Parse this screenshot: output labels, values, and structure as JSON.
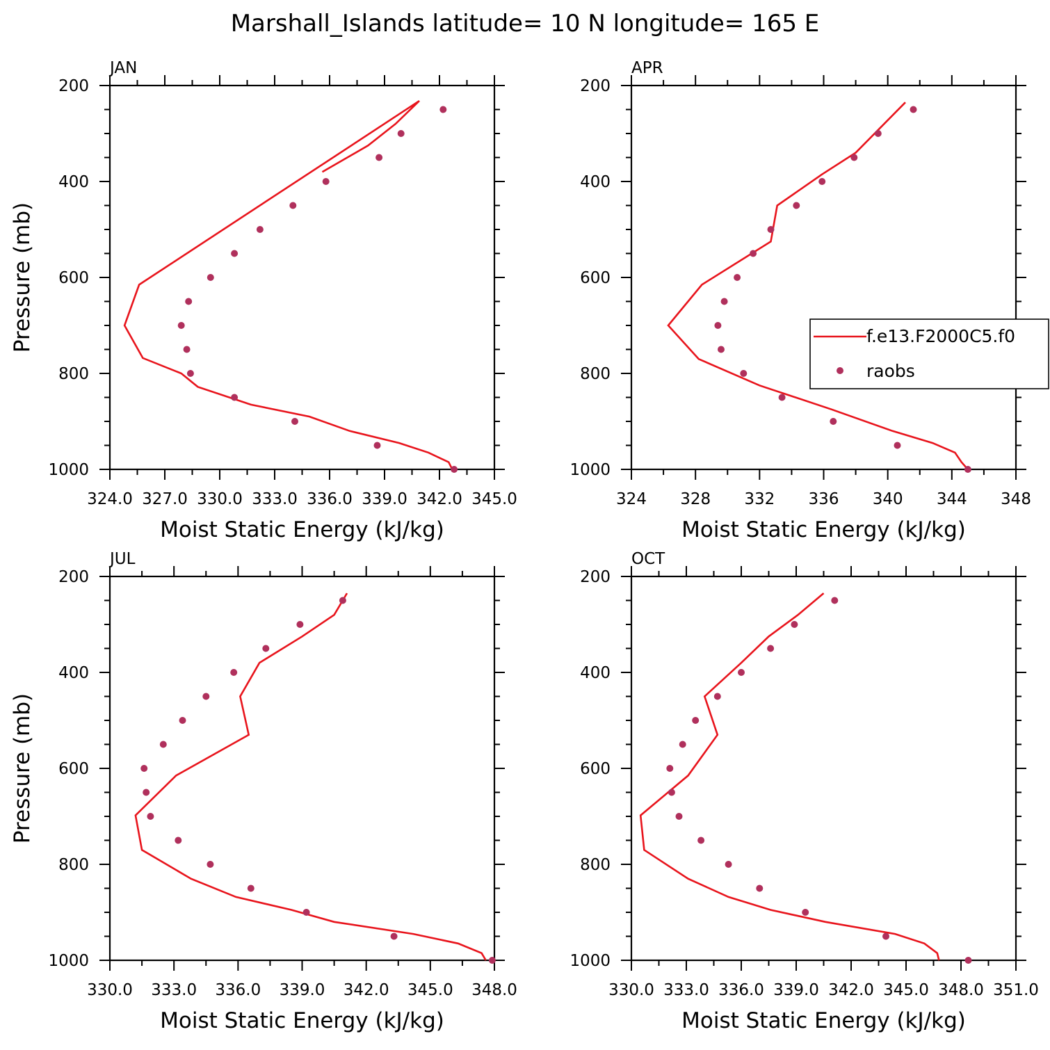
{
  "figure": {
    "title": "Marshall_Islands  latitude= 10 N longitude= 165 E",
    "colors": {
      "model": "#e8141c",
      "obs": "#b0305c"
    }
  },
  "legend": {
    "model_label": "f.e13.F2000C5.f0",
    "obs_label": "raobs"
  },
  "chart_data": [
    {
      "type": "line",
      "panel_label": "JAN",
      "xlabel": "Moist Static Energy (kJ/kg)",
      "ylabel": "Pressure (mb)",
      "xlim": [
        324.0,
        345.0
      ],
      "ylim": [
        200,
        1000
      ],
      "y_reversed": true,
      "xticks": [
        324.0,
        327.0,
        330.0,
        333.0,
        336.0,
        339.0,
        342.0,
        345.0
      ],
      "xtick_labels": [
        "324.0",
        "327.0",
        "330.0",
        "333.0",
        "336.0",
        "339.0",
        "342.0",
        "345.0"
      ],
      "yticks": [
        200,
        400,
        600,
        800,
        1000
      ],
      "ytick_labels": [
        "200",
        "400",
        "600",
        "800",
        "1000"
      ],
      "legend_visible": false,
      "series": [
        {
          "kind": "line",
          "x": [
            342.7,
            342.5,
            341.4,
            339.8,
            337.1,
            334.9,
            331.7,
            328.8,
            327.9,
            325.8,
            324.8,
            325.6,
            340.9,
            339.6,
            338.1,
            335.6
          ],
          "y": [
            1000,
            985,
            965,
            945,
            920,
            890,
            865,
            828,
            800,
            768,
            700,
            615,
            232,
            280,
            325,
            380
          ]
        },
        {
          "kind": "scatter",
          "x": [
            342.8,
            338.6,
            334.1,
            330.8,
            328.4,
            328.2,
            327.9,
            328.3,
            329.5,
            330.8,
            332.2,
            334.0,
            335.8,
            338.7,
            339.9,
            342.2
          ],
          "y": [
            1000,
            950,
            900,
            850,
            800,
            750,
            700,
            650,
            600,
            550,
            500,
            450,
            400,
            350,
            300,
            250
          ]
        }
      ]
    },
    {
      "type": "line",
      "panel_label": "APR",
      "xlabel": "Moist Static Energy (kJ/kg)",
      "ylabel": "",
      "xlim": [
        324,
        348
      ],
      "ylim": [
        200,
        1000
      ],
      "y_reversed": true,
      "xticks": [
        324,
        328,
        332,
        336,
        340,
        344,
        348
      ],
      "xtick_labels": [
        "324",
        "328",
        "332",
        "336",
        "340",
        "344",
        "348"
      ],
      "yticks": [
        200,
        400,
        600,
        800,
        1000
      ],
      "ytick_labels": [
        "200",
        "400",
        "600",
        "800",
        "1000"
      ],
      "legend_visible": true,
      "series": [
        {
          "kind": "line",
          "x": [
            345.0,
            344.6,
            344.2,
            342.8,
            340.3,
            336.5,
            332.0,
            328.2,
            326.3,
            328.4,
            332.7,
            333.1,
            335.9,
            338.0,
            341.1
          ],
          "y": [
            1000,
            985,
            965,
            945,
            920,
            875,
            825,
            770,
            700,
            615,
            525,
            450,
            385,
            340,
            235
          ]
        },
        {
          "kind": "scatter",
          "x": [
            345.0,
            340.6,
            336.6,
            333.4,
            331.0,
            329.6,
            329.4,
            329.8,
            330.6,
            331.6,
            332.7,
            334.3,
            335.9,
            337.9,
            339.4,
            341.6
          ],
          "y": [
            1000,
            950,
            900,
            850,
            800,
            750,
            700,
            650,
            600,
            550,
            500,
            450,
            400,
            350,
            300,
            250
          ]
        }
      ]
    },
    {
      "type": "line",
      "panel_label": "JUL",
      "xlabel": "Moist Static Energy (kJ/kg)",
      "ylabel": "Pressure (mb)",
      "xlim": [
        330.0,
        348.0
      ],
      "ylim": [
        200,
        1000
      ],
      "y_reversed": true,
      "xticks": [
        330.0,
        333.0,
        336.0,
        339.0,
        342.0,
        345.0,
        348.0
      ],
      "xtick_labels": [
        "330.0",
        "333.0",
        "336.0",
        "339.0",
        "342.0",
        "345.0",
        "348.0"
      ],
      "yticks": [
        200,
        400,
        600,
        800,
        1000
      ],
      "ytick_labels": [
        "200",
        "400",
        "600",
        "800",
        "1000"
      ],
      "legend_visible": false,
      "series": [
        {
          "kind": "line",
          "x": [
            347.6,
            347.4,
            346.3,
            344.2,
            340.5,
            338.5,
            335.9,
            333.8,
            331.5,
            331.2,
            333.1,
            336.5,
            336.1,
            337.0,
            339.0,
            340.5,
            341.1
          ],
          "y": [
            1000,
            985,
            965,
            945,
            920,
            895,
            868,
            830,
            770,
            698,
            615,
            530,
            450,
            380,
            325,
            280,
            235
          ]
        },
        {
          "kind": "scatter",
          "x": [
            347.9,
            343.3,
            339.2,
            336.6,
            334.7,
            333.2,
            331.9,
            331.7,
            331.6,
            332.5,
            333.4,
            334.5,
            335.8,
            337.3,
            338.9,
            340.9
          ],
          "y": [
            1000,
            950,
            900,
            850,
            800,
            750,
            700,
            650,
            600,
            550,
            500,
            450,
            400,
            350,
            300,
            250
          ]
        }
      ]
    },
    {
      "type": "line",
      "panel_label": "OCT",
      "xlabel": "Moist Static Energy (kJ/kg)",
      "ylabel": "",
      "xlim": [
        330.0,
        351.0
      ],
      "ylim": [
        200,
        1000
      ],
      "y_reversed": true,
      "xticks": [
        330.0,
        333.0,
        336.0,
        339.0,
        342.0,
        345.0,
        348.0,
        351.0
      ],
      "xtick_labels": [
        "330.0",
        "333.0",
        "336.0",
        "339.0",
        "342.0",
        "345.0",
        "348.0",
        "351.0"
      ],
      "yticks": [
        200,
        400,
        600,
        800,
        1000
      ],
      "ytick_labels": [
        "200",
        "400",
        "600",
        "800",
        "1000"
      ],
      "legend_visible": false,
      "series": [
        {
          "kind": "line",
          "x": [
            346.8,
            346.7,
            346.0,
            344.4,
            340.6,
            337.6,
            335.3,
            333.1,
            330.7,
            330.5,
            333.1,
            334.7,
            334.0,
            336.0,
            337.5,
            339.1,
            340.5
          ],
          "y": [
            1000,
            985,
            965,
            945,
            920,
            895,
            868,
            830,
            770,
            698,
            615,
            530,
            450,
            380,
            325,
            280,
            235
          ]
        },
        {
          "kind": "scatter",
          "x": [
            348.4,
            343.9,
            339.5,
            337.0,
            335.3,
            333.8,
            332.6,
            332.2,
            332.1,
            332.8,
            333.5,
            334.7,
            336.0,
            337.6,
            338.9,
            341.1
          ],
          "y": [
            1000,
            950,
            900,
            850,
            800,
            750,
            700,
            650,
            600,
            550,
            500,
            450,
            400,
            350,
            300,
            250
          ]
        }
      ]
    }
  ]
}
